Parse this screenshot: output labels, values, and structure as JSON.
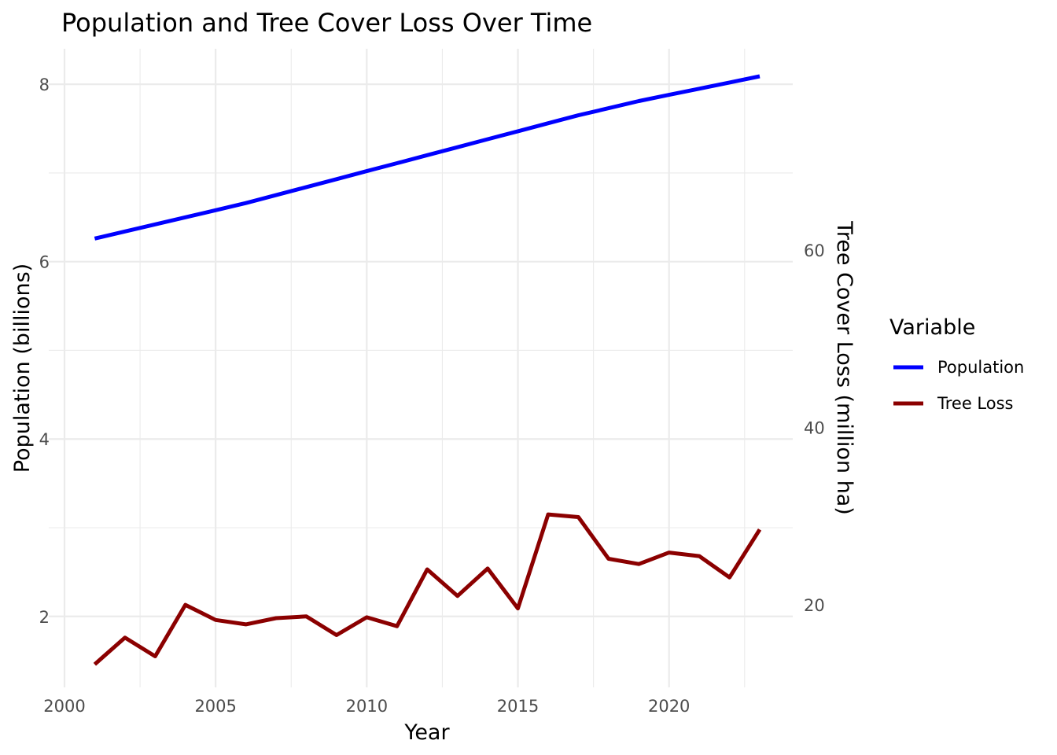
{
  "chart_data": {
    "type": "line",
    "title": "Population and Tree Cover Loss Over Time",
    "xlabel": "Year",
    "ylabel": "Population (billions)",
    "y2label": "Tree Cover Loss (million ha)",
    "xlim": [
      2000,
      2023.5
    ],
    "ylim": [
      1.2,
      8.4
    ],
    "y2lim": [
      10.7,
      82.7
    ],
    "x_ticks": [
      2000,
      2005,
      2010,
      2015,
      2020
    ],
    "y_ticks": [
      2,
      4,
      6,
      8
    ],
    "y2_ticks": [
      20,
      40,
      60
    ],
    "grid": true,
    "legend": {
      "title": "Variable",
      "position": "right",
      "entries": [
        {
          "label": "Population",
          "color": "#0000ff"
        },
        {
          "label": "Tree Loss",
          "color": "#8b0000"
        }
      ]
    },
    "x": [
      2001,
      2002,
      2003,
      2004,
      2005,
      2006,
      2007,
      2008,
      2009,
      2010,
      2011,
      2012,
      2013,
      2014,
      2015,
      2016,
      2017,
      2018,
      2019,
      2020,
      2021,
      2022,
      2023
    ],
    "series": [
      {
        "name": "Population",
        "axis": "left",
        "color": "#0000ff",
        "values": [
          6.26,
          6.34,
          6.42,
          6.5,
          6.58,
          6.66,
          6.75,
          6.84,
          6.93,
          7.02,
          7.11,
          7.2,
          7.29,
          7.38,
          7.47,
          7.56,
          7.65,
          7.73,
          7.81,
          7.88,
          7.95,
          8.02,
          8.09
        ]
      },
      {
        "name": "Tree Loss",
        "axis": "right",
        "color": "#8b0000",
        "values": [
          13.3,
          16.3,
          14.2,
          20.0,
          18.3,
          17.8,
          18.5,
          18.7,
          16.6,
          18.6,
          17.6,
          24.0,
          21.0,
          24.1,
          19.6,
          30.2,
          29.9,
          25.2,
          24.6,
          25.9,
          25.5,
          23.1,
          28.5
        ]
      }
    ]
  }
}
